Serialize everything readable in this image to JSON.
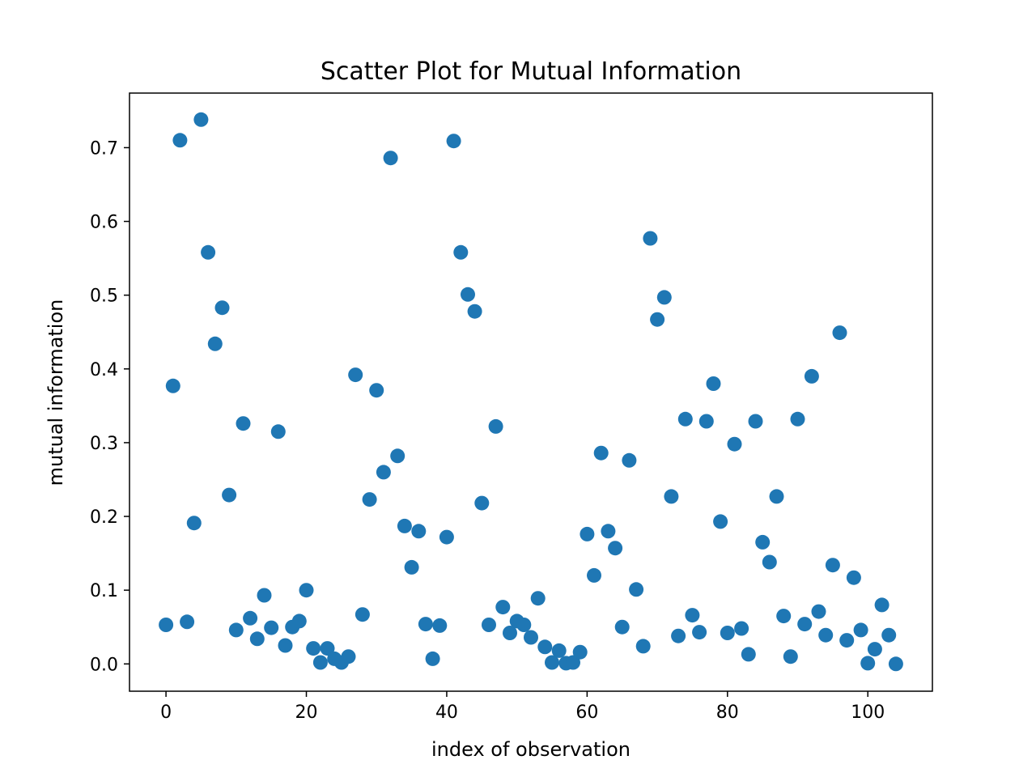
{
  "chart_data": {
    "type": "scatter",
    "title": "Scatter Plot for Mutual Information",
    "xlabel": "index of observation",
    "ylabel": "mutual information",
    "xlim": [
      -5.2,
      109.2
    ],
    "ylim": [
      -0.037,
      0.774
    ],
    "xticks": [
      0,
      20,
      40,
      60,
      80,
      100
    ],
    "xtick_labels": [
      "0",
      "20",
      "40",
      "60",
      "80",
      "100"
    ],
    "yticks": [
      0.0,
      0.1,
      0.2,
      0.3,
      0.4,
      0.5,
      0.6,
      0.7
    ],
    "ytick_labels": [
      "0.0",
      "0.1",
      "0.2",
      "0.3",
      "0.4",
      "0.5",
      "0.6",
      "0.7"
    ],
    "grid": false,
    "marker_color": "#1f77b4",
    "x": [
      0,
      1,
      2,
      3,
      4,
      5,
      6,
      7,
      8,
      9,
      10,
      11,
      12,
      13,
      14,
      15,
      16,
      17,
      18,
      19,
      20,
      21,
      22,
      23,
      24,
      25,
      26,
      27,
      28,
      29,
      30,
      31,
      32,
      33,
      34,
      35,
      36,
      37,
      38,
      39,
      40,
      41,
      42,
      43,
      44,
      45,
      46,
      47,
      48,
      49,
      50,
      51,
      52,
      53,
      54,
      55,
      56,
      57,
      58,
      59,
      60,
      61,
      62,
      63,
      64,
      65,
      66,
      67,
      68,
      69,
      70,
      71,
      72,
      73,
      74,
      75,
      76,
      77,
      78,
      79,
      80,
      81,
      82,
      83,
      84,
      85,
      86,
      87,
      88,
      89,
      90,
      91,
      92,
      93,
      94,
      95,
      96,
      97,
      98,
      99,
      100,
      101,
      102,
      103,
      104
    ],
    "y": [
      0.053,
      0.377,
      0.71,
      0.057,
      0.191,
      0.738,
      0.558,
      0.434,
      0.483,
      0.229,
      0.046,
      0.326,
      0.062,
      0.034,
      0.093,
      0.049,
      0.315,
      0.025,
      0.05,
      0.058,
      0.1,
      0.021,
      0.002,
      0.021,
      0.007,
      0.002,
      0.01,
      0.392,
      0.067,
      0.223,
      0.371,
      0.26,
      0.686,
      0.282,
      0.187,
      0.131,
      0.18,
      0.054,
      0.007,
      0.052,
      0.172,
      0.709,
      0.558,
      0.501,
      0.478,
      0.218,
      0.053,
      0.322,
      0.077,
      0.042,
      0.058,
      0.053,
      0.036,
      0.089,
      0.023,
      0.002,
      0.018,
      0.001,
      0.002,
      0.016,
      0.176,
      0.12,
      0.286,
      0.18,
      0.157,
      0.05,
      0.276,
      0.101,
      0.024,
      0.577,
      0.467,
      0.497,
      0.227,
      0.038,
      0.332,
      0.066,
      0.043,
      0.329,
      0.38,
      0.193,
      0.042,
      0.298,
      0.048,
      0.013,
      0.329,
      0.165,
      0.138,
      0.227,
      0.065,
      0.01,
      0.332,
      0.054,
      0.39,
      0.071,
      0.039,
      0.134,
      0.449,
      0.032,
      0.117,
      0.046,
      0.001,
      0.02,
      0.08,
      0.039,
      0.0
    ]
  }
}
